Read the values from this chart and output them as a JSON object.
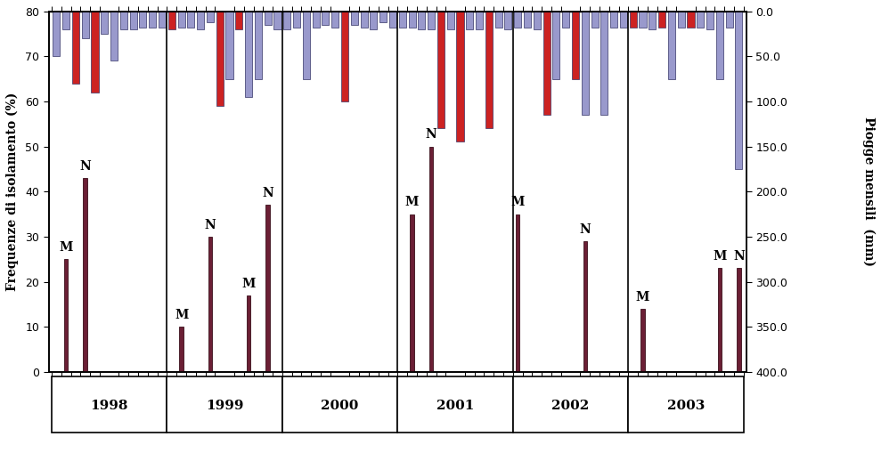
{
  "left_ylabel": "Frequenze di isolamento (%)",
  "right_ylabel": "Piogge mensili  (mm)",
  "years": [
    "1998",
    "1999",
    "2000",
    "2001",
    "2002",
    "2003"
  ],
  "bar_color_blue": "#9999cc",
  "bar_color_red": "#cc2222",
  "bar_color_iso": "#6b1f35",
  "iso_edge_color": "#3a0f1a",
  "background_color": "#ffffff",
  "rain_mm": [
    50,
    20,
    80,
    30,
    90,
    25,
    55,
    20,
    20,
    18,
    18,
    18,
    20,
    18,
    18,
    20,
    12,
    105,
    75,
    20,
    95,
    75,
    15,
    20,
    20,
    18,
    75,
    18,
    15,
    18,
    100,
    15,
    18,
    20,
    12,
    18,
    18,
    18,
    20,
    20,
    130,
    20,
    145,
    20,
    20,
    130,
    18,
    20,
    18,
    18,
    20,
    115,
    75,
    18,
    75,
    115,
    18,
    115,
    18,
    18,
    18,
    18,
    20,
    18,
    75,
    18,
    18,
    18,
    20,
    75,
    18,
    175
  ],
  "red_months": [
    2,
    4,
    12,
    17,
    19,
    30,
    40,
    42,
    45,
    51,
    54,
    60,
    63,
    66
  ],
  "iso_data": [
    [
      1,
      25,
      "M"
    ],
    [
      3,
      43,
      "N"
    ],
    [
      13,
      10,
      "M"
    ],
    [
      16,
      30,
      "N"
    ],
    [
      20,
      17,
      "M"
    ],
    [
      22,
      37,
      "N"
    ],
    [
      37,
      35,
      "M"
    ],
    [
      39,
      50,
      "N"
    ],
    [
      48,
      35,
      "M"
    ],
    [
      55,
      29,
      "N"
    ],
    [
      61,
      14,
      "M"
    ],
    [
      69,
      23,
      "M"
    ],
    [
      71,
      23,
      "N"
    ]
  ],
  "left_yticks": [
    0,
    10,
    20,
    30,
    40,
    50,
    60,
    70,
    80
  ],
  "right_yticks_mm": [
    0.0,
    50.0,
    100.0,
    150.0,
    200.0,
    250.0,
    300.0,
    350.0,
    400.0
  ]
}
